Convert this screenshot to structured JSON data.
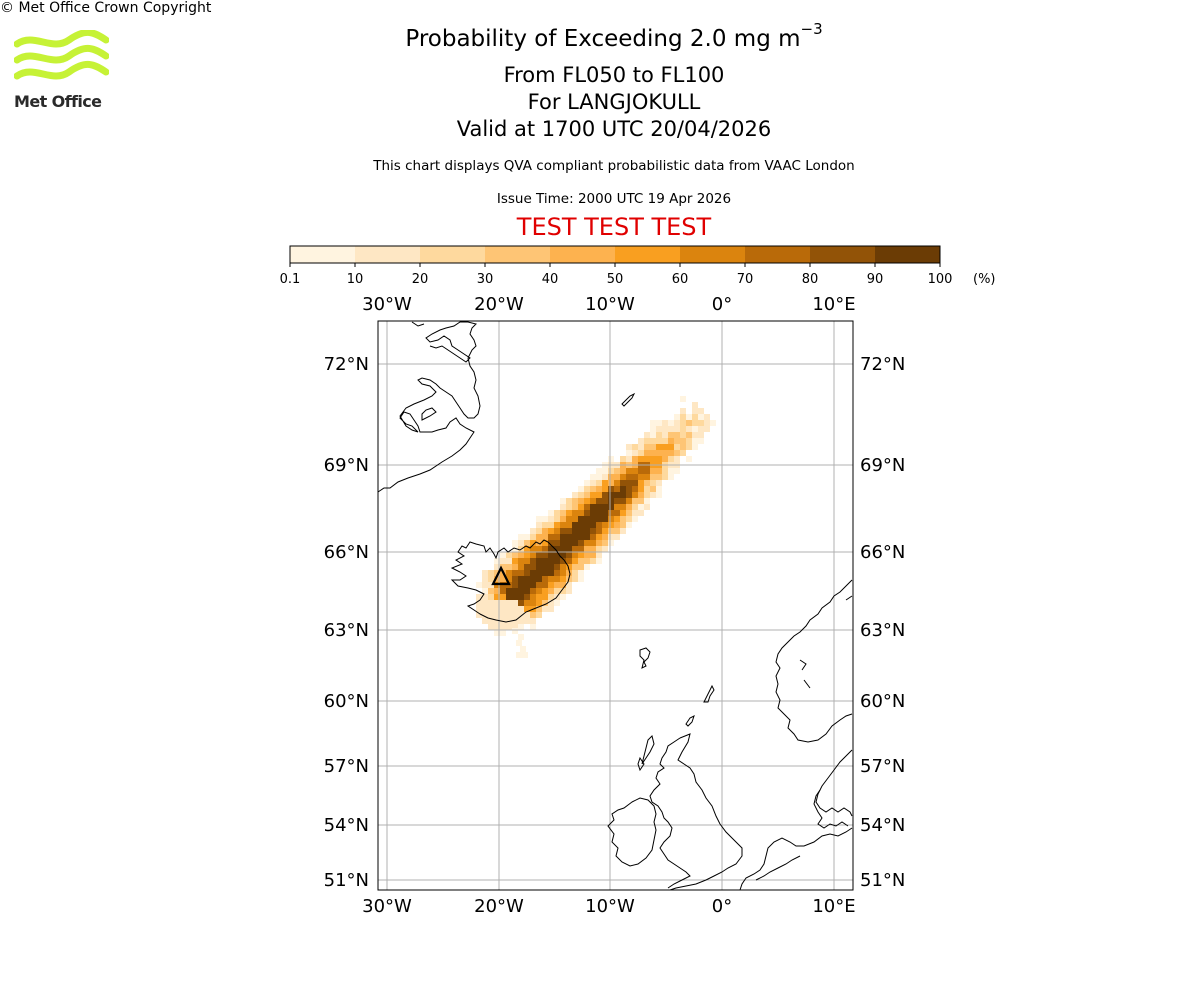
{
  "logo": {
    "text": "Met Office",
    "wave_color": "#c6f236"
  },
  "header": {
    "title": "Probability of Exceeding 2.0 mg m",
    "title_superscript": "−3",
    "level_range": "From FL050 to FL100",
    "volcano": "For LANGJOKULL",
    "valid_time": "Valid at 1700 UTC 20/04/2026",
    "disclaimer": "This chart displays QVA compliant probabilistic data from VAAC London",
    "issue_time": "Issue Time: 2000 UTC 19 Apr 2026",
    "test_banner": "TEST TEST TEST",
    "test_color": "#e00000"
  },
  "colorbar": {
    "unit_label": "(%)",
    "tick_labels": [
      "0.1",
      "10",
      "20",
      "30",
      "40",
      "50",
      "60",
      "70",
      "80",
      "90",
      "100"
    ],
    "colors": [
      "#fff4e0",
      "#fee7c4",
      "#fed99e",
      "#fec575",
      "#fdb24f",
      "#f99f20",
      "#db840e",
      "#b96a09",
      "#925307",
      "#6b3c05"
    ]
  },
  "map": {
    "lon_labels": [
      "30°W",
      "20°W",
      "10°W",
      "0°",
      "10°E"
    ],
    "lat_labels": [
      "72°N",
      "69°N",
      "66°N",
      "63°N",
      "60°N",
      "57°N",
      "54°N",
      "51°N"
    ],
    "volcano_marker": "triangle-marker",
    "grid_color": "#b0b0b0"
  },
  "footer": {
    "copyright": "© Met Office Crown Copyright"
  }
}
